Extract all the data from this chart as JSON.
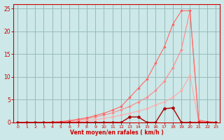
{
  "bg_color": "#cce8e8",
  "grid_color": "#99bbbb",
  "xlabel": "Vent moyen/en rafales ( km/h )",
  "xlabel_color": "#cc0000",
  "xlim": [
    -0.5,
    23.5
  ],
  "ylim": [
    0,
    26
  ],
  "yticks": [
    0,
    5,
    10,
    15,
    20,
    25
  ],
  "xticks": [
    0,
    1,
    2,
    3,
    4,
    5,
    6,
    7,
    8,
    9,
    10,
    11,
    12,
    13,
    14,
    15,
    16,
    17,
    18,
    19,
    20,
    21,
    22,
    23
  ],
  "line_pale1_x": [
    0,
    1,
    2,
    3,
    4,
    5,
    6,
    7,
    8,
    9,
    10,
    11,
    12,
    13,
    14,
    15,
    16,
    17,
    18,
    19,
    20,
    21,
    22,
    23
  ],
  "line_pale1_y": [
    0,
    0,
    0,
    0,
    0,
    0,
    0.1,
    0.2,
    0.4,
    0.6,
    0.9,
    1.2,
    1.6,
    2.0,
    2.5,
    3.0,
    3.8,
    4.5,
    5.5,
    7.0,
    10.3,
    0.2,
    0.1,
    0
  ],
  "line_pale2_x": [
    0,
    1,
    2,
    3,
    4,
    5,
    6,
    7,
    8,
    9,
    10,
    11,
    12,
    13,
    14,
    15,
    16,
    17,
    18,
    19,
    20,
    21,
    22,
    23
  ],
  "line_pale2_y": [
    0,
    0,
    0,
    0,
    0,
    0.1,
    0.3,
    0.5,
    0.8,
    1.2,
    1.6,
    2.1,
    2.8,
    3.5,
    4.5,
    5.5,
    7.0,
    9.0,
    12.0,
    16.0,
    24.5,
    0.3,
    0.1,
    0
  ],
  "line_pale3_x": [
    0,
    1,
    2,
    3,
    4,
    5,
    6,
    7,
    8,
    9,
    10,
    11,
    12,
    13,
    14,
    15,
    16,
    17,
    18,
    19,
    20,
    21,
    22,
    23
  ],
  "line_pale3_y": [
    0,
    0,
    0,
    0,
    0.1,
    0.2,
    0.4,
    0.7,
    1.0,
    1.5,
    2.0,
    2.7,
    3.5,
    5.5,
    7.5,
    9.5,
    13.0,
    16.5,
    21.5,
    24.5,
    24.5,
    0.5,
    0.2,
    0
  ],
  "line_dark_x": [
    0,
    1,
    2,
    3,
    4,
    5,
    6,
    7,
    8,
    9,
    10,
    11,
    12,
    13,
    14,
    15,
    16,
    17,
    18,
    19,
    20,
    21,
    22,
    23
  ],
  "line_dark_y": [
    0,
    0,
    0,
    0,
    0,
    0,
    0,
    0,
    0,
    0,
    0,
    0,
    0,
    1.2,
    1.2,
    0,
    0,
    3.0,
    3.2,
    0,
    0,
    0,
    0,
    0
  ],
  "line_pale1_color": "#ffaaaa",
  "line_pale2_color": "#ff8888",
  "line_pale3_color": "#ff6666",
  "line_dark_color": "#aa0000",
  "tick_color": "#cc0000",
  "axis_color": "#cc0000",
  "spine_color": "#cc0000"
}
